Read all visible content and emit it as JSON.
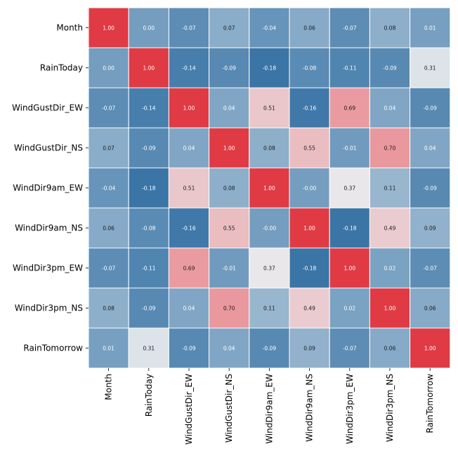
{
  "chart_data": {
    "type": "heatmap",
    "title": "",
    "xlabel": "",
    "ylabel": "",
    "row_labels": [
      "Month",
      "RainToday",
      "WindGustDir_EW",
      "WindGustDir_NS",
      "WindDir9am_EW",
      "WindDir9am_NS",
      "WindDir3pm_EW",
      "WindDir3pm_NS",
      "RainTomorrow"
    ],
    "col_labels": [
      "Month",
      "RainToday",
      "WindGustDir_EW",
      "WindGustDir_NS",
      "WindDir9am_EW",
      "WindDir9am_NS",
      "WindDir3pm_EW",
      "WindDir3pm_NS",
      "RainTomorrow"
    ],
    "values": [
      [
        1.0,
        0.0,
        -0.07,
        0.07,
        -0.04,
        0.06,
        -0.07,
        0.08,
        0.01
      ],
      [
        0.0,
        1.0,
        -0.14,
        -0.09,
        -0.18,
        -0.08,
        -0.11,
        -0.09,
        0.31
      ],
      [
        -0.07,
        -0.14,
        1.0,
        0.04,
        0.51,
        -0.16,
        0.69,
        0.04,
        -0.09
      ],
      [
        0.07,
        -0.09,
        0.04,
        1.0,
        0.08,
        0.55,
        -0.01,
        0.7,
        0.04
      ],
      [
        -0.04,
        -0.18,
        0.51,
        0.08,
        1.0,
        -0.0,
        0.37,
        0.11,
        -0.09
      ],
      [
        0.06,
        -0.08,
        -0.16,
        0.55,
        -0.0,
        1.0,
        -0.18,
        0.49,
        0.09
      ],
      [
        -0.07,
        -0.11,
        0.69,
        -0.01,
        0.37,
        -0.18,
        1.0,
        0.02,
        -0.07
      ],
      [
        0.08,
        -0.09,
        0.04,
        0.7,
        0.11,
        0.49,
        0.02,
        1.0,
        0.06
      ],
      [
        0.01,
        0.31,
        -0.09,
        0.04,
        -0.09,
        0.09,
        -0.07,
        0.06,
        1.0
      ]
    ],
    "value_format": "2 decimals",
    "annotations": true,
    "colorbar": false,
    "colors": {
      "low": "#3a75a6",
      "mid_blue": "#8fb0cb",
      "neutral": "#eaecee",
      "mid_red": "#eaa0a5",
      "high": "#e03a45",
      "cell_border": "#ffffff"
    }
  }
}
